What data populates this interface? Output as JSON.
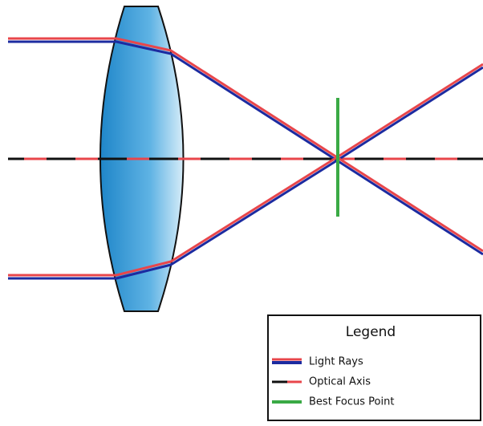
{
  "legend": {
    "title": "Legend",
    "items": [
      "Light Rays",
      "Optical Axis",
      "Best Focus Point"
    ]
  }
}
